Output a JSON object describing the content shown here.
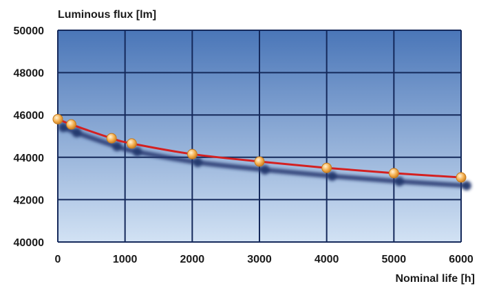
{
  "chart_data": {
    "type": "line",
    "ylabel": "Luminous flux [lm]",
    "xlabel": "Nominal life [h]",
    "xlim": [
      0,
      6000
    ],
    "ylim": [
      40000,
      50000
    ],
    "x_ticks": [
      0,
      1000,
      2000,
      3000,
      4000,
      5000,
      6000
    ],
    "y_ticks": [
      40000,
      42000,
      44000,
      46000,
      48000,
      50000
    ],
    "grid": true,
    "legend": "none",
    "series": [
      {
        "points": [
          {
            "x": 0,
            "y": 45800
          },
          {
            "x": 200,
            "y": 45550
          },
          {
            "x": 800,
            "y": 44900
          },
          {
            "x": 1100,
            "y": 44650
          },
          {
            "x": 2000,
            "y": 44150
          },
          {
            "x": 3000,
            "y": 43800
          },
          {
            "x": 4000,
            "y": 43500
          },
          {
            "x": 5000,
            "y": 43250
          },
          {
            "x": 6000,
            "y": 43050
          }
        ]
      }
    ],
    "colors": {
      "line": "#d42020",
      "marker": "#f5b050",
      "marker_edge": "#c47a1e",
      "grid": "#14285a",
      "plot_top": "#4a76b8",
      "plot_bottom": "#d2e2f4",
      "shadow": "#23376e"
    }
  }
}
